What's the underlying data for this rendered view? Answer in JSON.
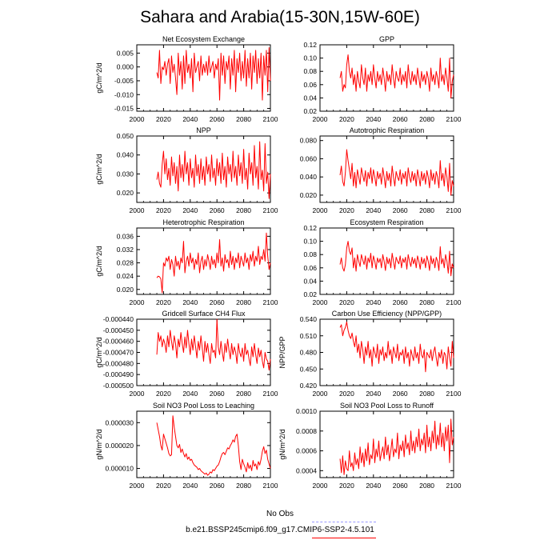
{
  "title": "Sahara and Arabia(15-30N,15W-60E)",
  "legend": {
    "entries": [
      {
        "label": "No Obs",
        "color": "#9999ff",
        "style": "dashed"
      },
      {
        "label": "b.e21.BSSP245cmip6.f09_g17.CMIP6-SSP2-4.5.101",
        "color": "#ff0000",
        "style": "solid"
      }
    ]
  },
  "colors": {
    "series": "#ff0000",
    "obs": "#9999ff",
    "axis": "#000000"
  },
  "chart_data": [
    {
      "type": "line",
      "title": "Net Ecosystem Exchange",
      "ylabel": "gC/m^2/d",
      "xlim": [
        2000,
        2100
      ],
      "ylim": [
        -0.016,
        0.008
      ],
      "xticks": [
        "2000",
        "2020",
        "2040",
        "2060",
        "2080",
        "2100"
      ],
      "yticks": [
        "-0.015",
        "-0.010",
        "-0.005",
        "0.000",
        "0.005"
      ],
      "ytick_values": [
        -0.015,
        -0.01,
        -0.005,
        0.0,
        0.005
      ],
      "x_start": 2015,
      "values": [
        -0.002,
        -0.004,
        0.006,
        -0.006,
        0.0,
        -0.001,
        0.002,
        -0.003,
        0.001,
        0.003,
        -0.006,
        0.004,
        -0.002,
        0.001,
        -0.004,
        -0.01,
        0.005,
        -0.003,
        0.002,
        -0.008,
        0.004,
        -0.006,
        0.006,
        -0.002,
        0.001,
        -0.004,
        0.003,
        -0.009,
        0.005,
        -0.002,
        0.0,
        0.002,
        -0.005,
        0.004,
        -0.003,
        0.001,
        -0.002,
        0.002,
        -0.003,
        0.004,
        -0.002,
        0.0,
        0.002,
        -0.004,
        0.001,
        -0.001,
        0.003,
        -0.012,
        0.005,
        -0.003,
        0.004,
        -0.006,
        0.002,
        -0.001,
        0.004,
        -0.008,
        0.003,
        -0.003,
        0.006,
        -0.009,
        0.003,
        -0.002,
        0.005,
        -0.005,
        0.002,
        -0.004,
        0.006,
        -0.007,
        0.003,
        -0.004,
        0.005,
        -0.008,
        0.004,
        -0.002,
        0.006,
        -0.006,
        0.003,
        -0.004,
        0.005,
        -0.012,
        0.004,
        -0.003,
        0.006,
        -0.009,
        0.007,
        -0.005
      ]
    },
    {
      "type": "line",
      "title": "GPP",
      "ylabel": "",
      "xlim": [
        2000,
        2100
      ],
      "ylim": [
        0.02,
        0.12
      ],
      "xticks": [
        "2000",
        "2020",
        "2040",
        "2060",
        "2080",
        "2100"
      ],
      "yticks": [
        "0.02",
        "0.04",
        "0.06",
        "0.08",
        "0.10",
        "0.12"
      ],
      "ytick_values": [
        0.02,
        0.04,
        0.06,
        0.08,
        0.1,
        0.12
      ],
      "x_start": 2015,
      "values": [
        0.07,
        0.08,
        0.05,
        0.06,
        0.055,
        0.09,
        0.105,
        0.08,
        0.07,
        0.085,
        0.06,
        0.075,
        0.05,
        0.08,
        0.065,
        0.055,
        0.09,
        0.07,
        0.06,
        0.085,
        0.05,
        0.075,
        0.065,
        0.08,
        0.06,
        0.09,
        0.07,
        0.055,
        0.08,
        0.065,
        0.075,
        0.06,
        0.085,
        0.07,
        0.05,
        0.08,
        0.065,
        0.075,
        0.06,
        0.09,
        0.07,
        0.055,
        0.08,
        0.07,
        0.065,
        0.085,
        0.06,
        0.075,
        0.065,
        0.08,
        0.055,
        0.09,
        0.07,
        0.06,
        0.08,
        0.065,
        0.075,
        0.06,
        0.085,
        0.07,
        0.055,
        0.08,
        0.065,
        0.075,
        0.06,
        0.08,
        0.07,
        0.05,
        0.085,
        0.065,
        0.075,
        0.06,
        0.08,
        0.07,
        0.055,
        0.1,
        0.065,
        0.075,
        0.06,
        0.085,
        0.07,
        0.05,
        0.1,
        0.04,
        0.065,
        0.075
      ]
    },
    {
      "type": "line",
      "title": "NPP",
      "ylabel": "gC/m^2/d",
      "xlim": [
        2000,
        2100
      ],
      "ylim": [
        0.015,
        0.05
      ],
      "xticks": [
        "2000",
        "2020",
        "2040",
        "2060",
        "2080",
        "2100"
      ],
      "yticks": [
        "0.020",
        "0.030",
        "0.040",
        "0.050"
      ],
      "ytick_values": [
        0.02,
        0.03,
        0.04,
        0.05
      ],
      "x_start": 2015,
      "values": [
        0.027,
        0.031,
        0.025,
        0.023,
        0.035,
        0.042,
        0.03,
        0.038,
        0.027,
        0.033,
        0.024,
        0.039,
        0.029,
        0.036,
        0.025,
        0.034,
        0.021,
        0.04,
        0.028,
        0.035,
        0.026,
        0.042,
        0.03,
        0.036,
        0.024,
        0.038,
        0.028,
        0.033,
        0.023,
        0.04,
        0.029,
        0.035,
        0.025,
        0.038,
        0.027,
        0.034,
        0.024,
        0.039,
        0.03,
        0.035,
        0.026,
        0.04,
        0.028,
        0.033,
        0.024,
        0.038,
        0.029,
        0.036,
        0.025,
        0.041,
        0.027,
        0.034,
        0.023,
        0.039,
        0.03,
        0.035,
        0.026,
        0.042,
        0.028,
        0.034,
        0.024,
        0.04,
        0.029,
        0.036,
        0.025,
        0.043,
        0.027,
        0.033,
        0.022,
        0.041,
        0.03,
        0.036,
        0.024,
        0.045,
        0.028,
        0.034,
        0.022,
        0.047,
        0.027,
        0.032,
        0.021,
        0.046,
        0.025,
        0.031,
        0.017,
        0.03
      ]
    },
    {
      "type": "line",
      "title": "Autotrophic Respiration",
      "ylabel": "",
      "xlim": [
        2000,
        2100
      ],
      "ylim": [
        0.012,
        0.085
      ],
      "xticks": [
        "2000",
        "2020",
        "2040",
        "2060",
        "2080",
        "2100"
      ],
      "yticks": [
        "0.020",
        "0.040",
        "0.060",
        "0.080"
      ],
      "ytick_values": [
        0.02,
        0.04,
        0.06,
        0.08
      ],
      "x_start": 2015,
      "values": [
        0.042,
        0.052,
        0.035,
        0.03,
        0.045,
        0.07,
        0.058,
        0.048,
        0.038,
        0.055,
        0.03,
        0.045,
        0.028,
        0.048,
        0.04,
        0.032,
        0.05,
        0.042,
        0.035,
        0.047,
        0.03,
        0.045,
        0.038,
        0.05,
        0.033,
        0.048,
        0.04,
        0.03,
        0.046,
        0.038,
        0.044,
        0.032,
        0.05,
        0.04,
        0.028,
        0.046,
        0.036,
        0.044,
        0.03,
        0.052,
        0.04,
        0.03,
        0.046,
        0.04,
        0.036,
        0.048,
        0.032,
        0.044,
        0.038,
        0.046,
        0.03,
        0.05,
        0.04,
        0.034,
        0.046,
        0.036,
        0.044,
        0.03,
        0.048,
        0.04,
        0.03,
        0.046,
        0.036,
        0.044,
        0.032,
        0.047,
        0.04,
        0.028,
        0.048,
        0.036,
        0.044,
        0.032,
        0.046,
        0.04,
        0.028,
        0.058,
        0.036,
        0.044,
        0.03,
        0.05,
        0.04,
        0.024,
        0.055,
        0.02,
        0.036,
        0.03
      ]
    },
    {
      "type": "line",
      "title": "Heterotrophic Respiration",
      "ylabel": "gC/m^2/d",
      "xlim": [
        2000,
        2100
      ],
      "ylim": [
        0.0185,
        0.0385
      ],
      "xticks": [
        "2000",
        "2020",
        "2040",
        "2060",
        "2080",
        "2100"
      ],
      "yticks": [
        "0.020",
        "0.024",
        "0.028",
        "0.032",
        "0.036"
      ],
      "ytick_values": [
        0.02,
        0.024,
        0.028,
        0.032,
        0.036
      ],
      "x_start": 2015,
      "values": [
        0.0235,
        0.024,
        0.0238,
        0.0232,
        0.019,
        0.028,
        0.027,
        0.0295,
        0.0285,
        0.03,
        0.026,
        0.029,
        0.0275,
        0.024,
        0.03,
        0.027,
        0.0285,
        0.026,
        0.0295,
        0.028,
        0.0345,
        0.025,
        0.0285,
        0.03,
        0.027,
        0.031,
        0.028,
        0.0295,
        0.026,
        0.029,
        0.0275,
        0.031,
        0.025,
        0.0285,
        0.03,
        0.026,
        0.029,
        0.027,
        0.0305,
        0.0285,
        0.026,
        0.03,
        0.0275,
        0.029,
        0.0265,
        0.031,
        0.028,
        0.035,
        0.027,
        0.0295,
        0.0255,
        0.0305,
        0.028,
        0.029,
        0.0265,
        0.0315,
        0.0275,
        0.03,
        0.026,
        0.0295,
        0.028,
        0.031,
        0.0265,
        0.03,
        0.0285,
        0.027,
        0.031,
        0.028,
        0.0295,
        0.026,
        0.0305,
        0.0285,
        0.0315,
        0.027,
        0.03,
        0.0285,
        0.033,
        0.0275,
        0.03,
        0.029,
        0.032,
        0.0285,
        0.037,
        0.03,
        0.026,
        0.028
      ]
    },
    {
      "type": "line",
      "title": "Ecosystem Respiration",
      "ylabel": "",
      "xlim": [
        2000,
        2100
      ],
      "ylim": [
        0.02,
        0.12
      ],
      "xticks": [
        "2000",
        "2020",
        "2040",
        "2060",
        "2080",
        "2100"
      ],
      "yticks": [
        "0.02",
        "0.04",
        "0.06",
        "0.08",
        "0.10",
        "0.12"
      ],
      "ytick_values": [
        0.02,
        0.04,
        0.06,
        0.08,
        0.1,
        0.12
      ],
      "x_start": 2015,
      "values": [
        0.065,
        0.075,
        0.06,
        0.055,
        0.065,
        0.09,
        0.1,
        0.085,
        0.08,
        0.09,
        0.06,
        0.075,
        0.055,
        0.08,
        0.07,
        0.062,
        0.08,
        0.072,
        0.065,
        0.078,
        0.058,
        0.075,
        0.068,
        0.082,
        0.06,
        0.078,
        0.07,
        0.058,
        0.075,
        0.068,
        0.074,
        0.06,
        0.08,
        0.07,
        0.056,
        0.076,
        0.066,
        0.074,
        0.06,
        0.082,
        0.07,
        0.058,
        0.076,
        0.07,
        0.066,
        0.078,
        0.06,
        0.074,
        0.068,
        0.076,
        0.058,
        0.08,
        0.07,
        0.062,
        0.076,
        0.066,
        0.074,
        0.06,
        0.078,
        0.07,
        0.058,
        0.076,
        0.066,
        0.074,
        0.06,
        0.078,
        0.07,
        0.056,
        0.078,
        0.066,
        0.074,
        0.06,
        0.076,
        0.07,
        0.056,
        0.092,
        0.066,
        0.074,
        0.06,
        0.08,
        0.07,
        0.052,
        0.085,
        0.048,
        0.066,
        0.06
      ]
    },
    {
      "type": "line",
      "title": "Gridcell Surface CH4 Flux",
      "ylabel": "gC/m^2/d",
      "xlim": [
        2000,
        2100
      ],
      "ylim": [
        -0.0005,
        -0.00044
      ],
      "xticks": [
        "2000",
        "2020",
        "2040",
        "2060",
        "2080",
        "2100"
      ],
      "yticks": [
        "-0.000500",
        "-0.000490",
        "-0.000480",
        "-0.000470",
        "-0.000460",
        "-0.000450",
        "-0.000440"
      ],
      "ytick_values": [
        -0.0005,
        -0.00049,
        -0.00048,
        -0.00047,
        -0.00046,
        -0.00045,
        -0.00044
      ],
      "x_start": 2015,
      "values": [
        -0.000472,
        -0.000452,
        -0.00046,
        -0.000455,
        -0.000465,
        -0.000458,
        -0.000462,
        -0.00047,
        -0.000455,
        -0.000465,
        -0.00045,
        -0.00046,
        -0.000468,
        -0.000455,
        -0.000462,
        -0.000475,
        -0.000458,
        -0.000465,
        -0.000452,
        -0.000462,
        -0.00047,
        -0.000456,
        -0.000466,
        -0.00045,
        -0.000462,
        -0.000472,
        -0.000458,
        -0.000468,
        -0.000455,
        -0.000465,
        -0.000475,
        -0.00046,
        -0.000468,
        -0.000455,
        -0.000466,
        -0.000478,
        -0.00046,
        -0.00047,
        -0.000462,
        -0.000472,
        -0.00048,
        -0.000462,
        -0.00047,
        -0.000468,
        -0.000475,
        -0.00044,
        -0.000465,
        -0.000472,
        -0.00046,
        -0.00047,
        -0.000478,
        -0.000462,
        -0.00047,
        -0.000458,
        -0.000468,
        -0.000476,
        -0.000462,
        -0.000472,
        -0.000465,
        -0.00047,
        -0.00048,
        -0.000462,
        -0.00047,
        -0.000474,
        -0.000466,
        -0.000478,
        -0.000462,
        -0.000472,
        -0.000468,
        -0.000476,
        -0.000482,
        -0.000465,
        -0.000474,
        -0.000462,
        -0.000472,
        -0.00048,
        -0.000466,
        -0.000474,
        -0.000468,
        -0.000478,
        -0.000484,
        -0.00047,
        -0.000476,
        -0.000478,
        -0.000486,
        -0.000476
      ]
    },
    {
      "type": "line",
      "title": "Carbon Use Efficiency (NPP/GPP)",
      "ylabel": "NPP/GPP",
      "xlim": [
        2000,
        2100
      ],
      "ylim": [
        0.42,
        0.54
      ],
      "xticks": [
        "2000",
        "2020",
        "2040",
        "2060",
        "2080",
        "2100"
      ],
      "yticks": [
        "0.420",
        "0.450",
        "0.480",
        "0.510",
        "0.540"
      ],
      "ytick_values": [
        0.42,
        0.45,
        0.48,
        0.51,
        0.54
      ],
      "x_start": 2015,
      "values": [
        0.525,
        0.53,
        0.51,
        0.52,
        0.525,
        0.535,
        0.52,
        0.51,
        0.505,
        0.515,
        0.5,
        0.49,
        0.51,
        0.48,
        0.495,
        0.47,
        0.5,
        0.485,
        0.46,
        0.49,
        0.475,
        0.5,
        0.47,
        0.485,
        0.455,
        0.49,
        0.48,
        0.47,
        0.495,
        0.46,
        0.485,
        0.475,
        0.49,
        0.465,
        0.48,
        0.47,
        0.5,
        0.475,
        0.485,
        0.46,
        0.49,
        0.48,
        0.47,
        0.495,
        0.465,
        0.48,
        0.475,
        0.485,
        0.46,
        0.49,
        0.47,
        0.48,
        0.455,
        0.485,
        0.475,
        0.465,
        0.49,
        0.47,
        0.48,
        0.46,
        0.495,
        0.475,
        0.47,
        0.485,
        0.445,
        0.48,
        0.475,
        0.47,
        0.485,
        0.465,
        0.48,
        0.49,
        0.47,
        0.455,
        0.48,
        0.47,
        0.485,
        0.46,
        0.48,
        0.475,
        0.45,
        0.49,
        0.47,
        0.455,
        0.5,
        0.47
      ]
    },
    {
      "type": "line",
      "title": "Soil NO3 Pool Loss to Leaching",
      "ylabel": "gN/m^2/d",
      "xlim": [
        2000,
        2100
      ],
      "ylim": [
        6e-06,
        3.5e-05
      ],
      "xticks": [
        "2000",
        "2020",
        "2040",
        "2060",
        "2080",
        "2100"
      ],
      "yticks": [
        "0.000010",
        "0.000020",
        "0.000030"
      ],
      "ytick_values": [
        1e-05,
        2e-05,
        3e-05
      ],
      "x_start": 2015,
      "values": [
        3e-05,
        2.7e-05,
        2.4e-05,
        2e-05,
        1.8e-05,
        2.5e-05,
        2.3e-05,
        2.1e-05,
        1.9e-05,
        1.65e-05,
        1.55e-05,
        1.6e-05,
        3.3e-05,
        2.8e-05,
        2.4e-05,
        2e-05,
        1.9e-05,
        2.05e-05,
        1.7e-05,
        1.85e-05,
        1.65e-05,
        1.5e-05,
        1.65e-05,
        1.4e-05,
        1.5e-05,
        1.35e-05,
        1.4e-05,
        1.25e-05,
        1.15e-05,
        1.1e-05,
        1.05e-05,
        9.5e-06,
        1e-05,
        9e-06,
        8.5e-06,
        8e-06,
        7.5e-06,
        8e-06,
        7e-06,
        7.5e-06,
        8.5e-06,
        8e-06,
        9.5e-06,
        9e-06,
        1e-05,
        1.1e-05,
        1.15e-05,
        1.3e-05,
        1.5e-05,
        1.65e-05,
        1.7e-05,
        1.6e-05,
        1.75e-05,
        1.9e-05,
        1.85e-05,
        2e-05,
        2.1e-05,
        2.25e-05,
        2.15e-05,
        2.4e-05,
        2.5e-05,
        2e-05,
        1.3e-05,
        9.5e-06,
        1.4e-05,
        1.2e-05,
        1.05e-05,
        8.5e-06,
        1.25e-05,
        1e-05,
        1.15e-05,
        9e-06,
        1.35e-05,
        1.1e-05,
        1.2e-05,
        9.5e-06,
        1.3e-05,
        1.15e-05,
        1.4e-05,
        1.75e-05,
        1.95e-05,
        1.65e-05,
        1.8e-05,
        1.4e-05,
        1.2e-05,
        1e-05
      ]
    },
    {
      "type": "line",
      "title": "Soil NO3 Pool Loss to Runoff",
      "ylabel": "gN/m^2/d",
      "xlim": [
        2000,
        2100
      ],
      "ylim": [
        0.00033,
        0.001
      ],
      "xticks": [
        "2000",
        "2020",
        "2040",
        "2060",
        "2080",
        "2100"
      ],
      "yticks": [
        "0.0004",
        "0.0006",
        "0.0008",
        "0.0010"
      ],
      "ytick_values": [
        0.0004,
        0.0006,
        0.0008,
        0.001
      ],
      "x_start": 2015,
      "values": [
        0.00052,
        0.00038,
        0.00055,
        0.00036,
        0.0005,
        0.00042,
        0.0004,
        0.0006,
        0.00044,
        0.00048,
        0.0004,
        0.00058,
        0.00046,
        0.00052,
        0.00042,
        0.00064,
        0.00048,
        0.00058,
        0.00044,
        0.00062,
        0.0005,
        0.00068,
        0.00046,
        0.00056,
        0.00052,
        0.00072,
        0.00048,
        0.00062,
        0.00054,
        0.0007,
        0.0005,
        0.00058,
        0.00064,
        0.00052,
        0.00074,
        0.00056,
        0.00066,
        0.0005,
        0.0006,
        0.00072,
        0.00054,
        0.00062,
        0.00058,
        0.00078,
        0.00052,
        0.00066,
        0.0006,
        0.0007,
        0.00054,
        0.00076,
        0.00062,
        0.00068,
        0.00056,
        0.0008,
        0.0006,
        0.0007,
        0.00058,
        0.00074,
        0.00064,
        0.00082,
        0.0006,
        0.00072,
        0.00066,
        0.00078,
        0.00058,
        0.00086,
        0.00064,
        0.00074,
        0.0006,
        0.0008,
        0.00068,
        0.0009,
        0.00062,
        0.00076,
        0.00066,
        0.00088,
        0.00064,
        0.00078,
        0.0006,
        0.00084,
        0.0007,
        0.00086,
        0.00048,
        0.00092,
        0.00066,
        0.00074
      ]
    }
  ]
}
